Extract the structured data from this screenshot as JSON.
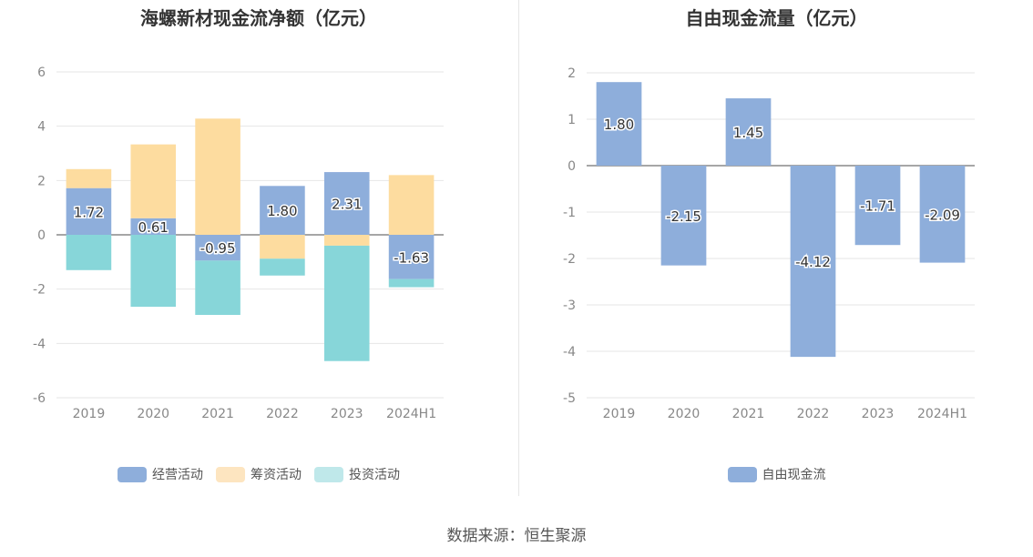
{
  "source_label": "数据来源：恒生聚源",
  "chart_data": [
    {
      "type": "bar",
      "stacked": true,
      "title": "海螺新材现金流净额（亿元）",
      "categories": [
        "2019",
        "2020",
        "2021",
        "2022",
        "2023",
        "2024H1"
      ],
      "ylim": [
        -6,
        6
      ],
      "yticks": [
        6,
        4,
        2,
        0,
        -2,
        -4,
        -6
      ],
      "series": [
        {
          "name": "经营活动",
          "color": "#8eaedb",
          "values": [
            1.72,
            0.61,
            -0.95,
            1.8,
            2.31,
            -1.63
          ],
          "labels": [
            "1.72",
            "0.61",
            "-0.95",
            "1.80",
            "2.31",
            "-1.63"
          ]
        },
        {
          "name": "筹资活动",
          "color": "#fddc9f",
          "values": [
            0.7,
            2.72,
            4.28,
            -0.88,
            -0.4,
            2.2
          ]
        },
        {
          "name": "投资活动",
          "color": "#87d6d9",
          "values": [
            -1.3,
            -2.65,
            -2.0,
            -0.62,
            -4.25,
            -0.3
          ]
        }
      ],
      "legend_colors": [
        "#8eaedb",
        "#fde5c0",
        "#bfe8ea"
      ]
    },
    {
      "type": "bar",
      "title": "自由现金流量（亿元）",
      "categories": [
        "2019",
        "2020",
        "2021",
        "2022",
        "2023",
        "2024H1"
      ],
      "ylim": [
        -5,
        2
      ],
      "yticks": [
        2,
        1,
        0,
        -1,
        -2,
        -3,
        -4,
        -5
      ],
      "series": [
        {
          "name": "自由现金流",
          "color": "#8eaedb",
          "values": [
            1.8,
            -2.15,
            1.45,
            -4.12,
            -1.71,
            -2.09
          ],
          "labels": [
            "1.80",
            "-2.15",
            "1.45",
            "-4.12",
            "-1.71",
            "-2.09"
          ]
        }
      ],
      "legend_colors": [
        "#8eaedb"
      ]
    }
  ]
}
